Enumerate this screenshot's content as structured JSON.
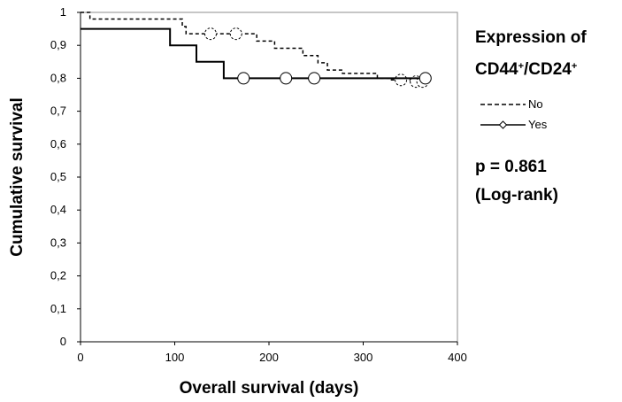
{
  "chart_data": {
    "type": "line",
    "subtype": "kaplan-meier step",
    "xlabel": "Overall survival (days)",
    "ylabel": "Cumulative survival",
    "xlim": [
      0,
      400
    ],
    "ylim": [
      0,
      1
    ],
    "x_ticks": [
      "0",
      "100",
      "200",
      "300",
      "400"
    ],
    "y_ticks": [
      "0",
      "0,1",
      "0,2",
      "0,3",
      "0,4",
      "0,5",
      "0,6",
      "0,7",
      "0,8",
      "0,9",
      "1"
    ],
    "grid": false,
    "legend": {
      "title_line1": "Expression of",
      "title_line2_parts": [
        "CD44",
        "+",
        "/CD24",
        "+"
      ],
      "entries": [
        "No",
        "Yes"
      ],
      "placement": "right"
    },
    "annotation": {
      "line1": "p = 0.861",
      "line2": "(Log-rank)"
    },
    "series": [
      {
        "name": "No",
        "style": "dashed",
        "steps": [
          [
            0,
            1.0
          ],
          [
            10,
            0.98
          ],
          [
            108,
            0.957
          ],
          [
            112,
            0.935
          ],
          [
            187,
            0.913
          ],
          [
            206,
            0.891
          ],
          [
            236,
            0.869
          ],
          [
            252,
            0.847
          ],
          [
            262,
            0.825
          ],
          [
            278,
            0.815
          ],
          [
            315,
            0.8
          ],
          [
            330,
            0.795
          ],
          [
            350,
            0.79
          ],
          [
            366,
            0.79
          ]
        ],
        "censored": [
          [
            138,
            0.935
          ],
          [
            165,
            0.935
          ],
          [
            340,
            0.795
          ],
          [
            356,
            0.79
          ],
          [
            363,
            0.79
          ]
        ]
      },
      {
        "name": "Yes",
        "style": "solid",
        "steps": [
          [
            0,
            0.95
          ],
          [
            95,
            0.9
          ],
          [
            123,
            0.85
          ],
          [
            152,
            0.8
          ],
          [
            366,
            0.8
          ]
        ],
        "censored": [
          [
            173,
            0.8
          ],
          [
            218,
            0.8
          ],
          [
            248,
            0.8
          ],
          [
            366,
            0.8
          ]
        ]
      }
    ]
  }
}
